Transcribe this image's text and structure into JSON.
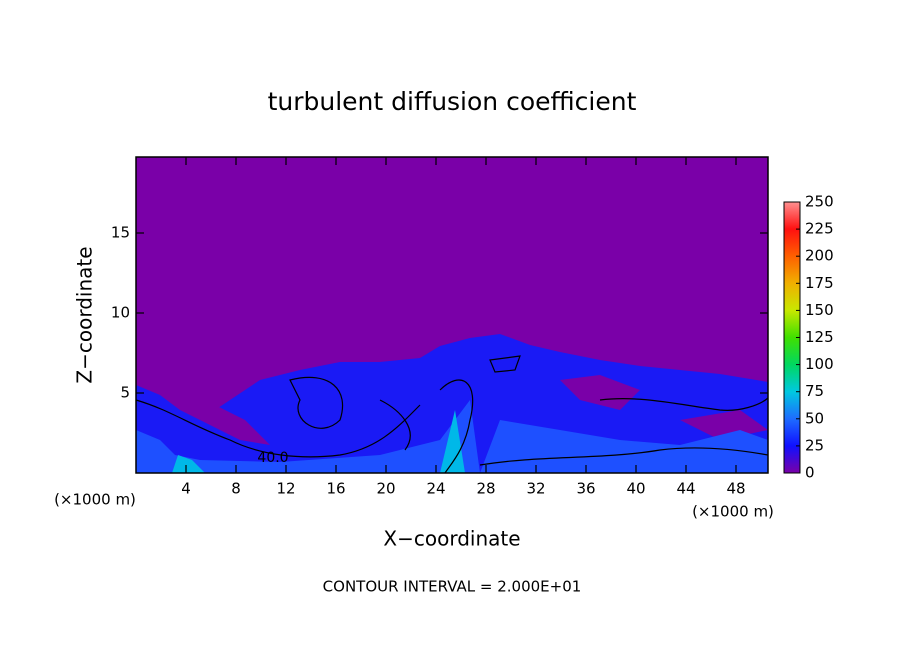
{
  "chart_data": {
    "type": "heatmap",
    "title": "turbulent diffusion coefficient",
    "x_label": "X−coordinate",
    "y_label": "Z−coordinate",
    "x_unit_label": "(×1000 m)",
    "footnote": "CONTOUR INTERVAL = 2.000E+01",
    "contour_label": "40.0",
    "xlim": [
      0,
      50.56
    ],
    "xticks": [
      4,
      8,
      12,
      16,
      20,
      24,
      28,
      32,
      36,
      40,
      44,
      48
    ],
    "ylim": [
      0,
      19.75
    ],
    "yticks": [
      5,
      10,
      15
    ],
    "colorbar": {
      "lim": [
        0,
        250
      ],
      "ticks": [
        0,
        25,
        50,
        75,
        100,
        125,
        150,
        175,
        200,
        225,
        250
      ],
      "colors": [
        "#7a00a8",
        "#1010ff",
        "#1e6cff",
        "#00c8e0",
        "#00d860",
        "#40e000",
        "#c8e800",
        "#f0b000",
        "#ff6000",
        "#ff1010",
        "#ff9090"
      ]
    }
  }
}
